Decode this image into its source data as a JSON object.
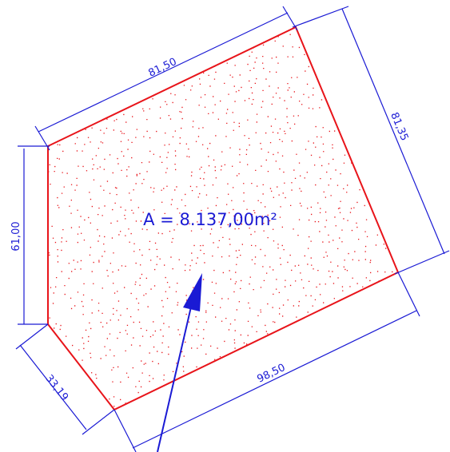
{
  "area_label": "A = 8.137,00m²",
  "dimensions": {
    "top": "81,50",
    "right": "81,35",
    "left": "61,00",
    "bottom_left": "33,19",
    "bottom": "98,50"
  },
  "colors": {
    "outline": "#e8141a",
    "hatch": "#e8141a",
    "dimension": "#1a1ad4",
    "arrow": "#1a1ad4"
  }
}
